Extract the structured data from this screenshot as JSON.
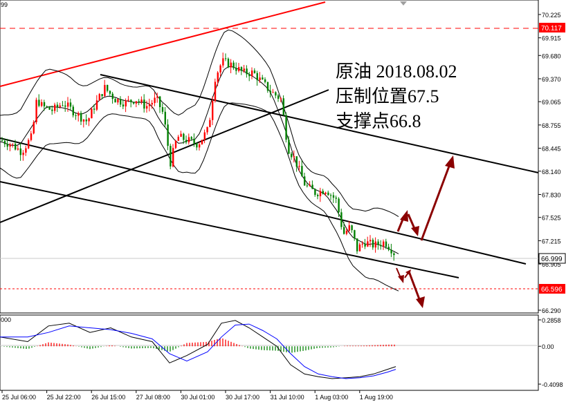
{
  "chart_data": {
    "type": "candlestick",
    "symbol_fragment": "99",
    "annotation": {
      "line1": "原油  2018.08.02",
      "line2": "压制位置67.5",
      "line3": "支撑点66.8"
    },
    "price_axis": {
      "range": [
        66.25,
        70.4
      ],
      "ticks": [
        "70.225",
        "69.915",
        "69.680",
        "69.370",
        "69.065",
        "68.755",
        "68.445",
        "68.140",
        "67.830",
        "67.525",
        "67.215",
        "66.905",
        "66.290"
      ]
    },
    "markers": {
      "resistance_price": "70.117",
      "current_price": "66.999",
      "support_price": "66.596"
    },
    "time_axis": [
      "25 Jul 06:00",
      "25 Jul 22:00",
      "26 Jul 15:00",
      "27 Jul 08:00",
      "30 Jul 01:00",
      "30 Jul 17:00",
      "31 Jul 10:00",
      "1 Aug 03:00",
      "1 Aug 19:00"
    ],
    "indicator": {
      "left_label": "000",
      "ticks": [
        "0.2858",
        "0.00",
        "-0.4098"
      ],
      "range": [
        -0.4098,
        0.2858
      ]
    },
    "colors": {
      "bull": "#ff0000",
      "bear": "#008000",
      "resistance": "#ff0000",
      "axis_text": "#000000",
      "ref_line": "#c8c8c8",
      "bands": "#000000",
      "signal": "#0000ff",
      "arrow": "#8b0000"
    }
  }
}
